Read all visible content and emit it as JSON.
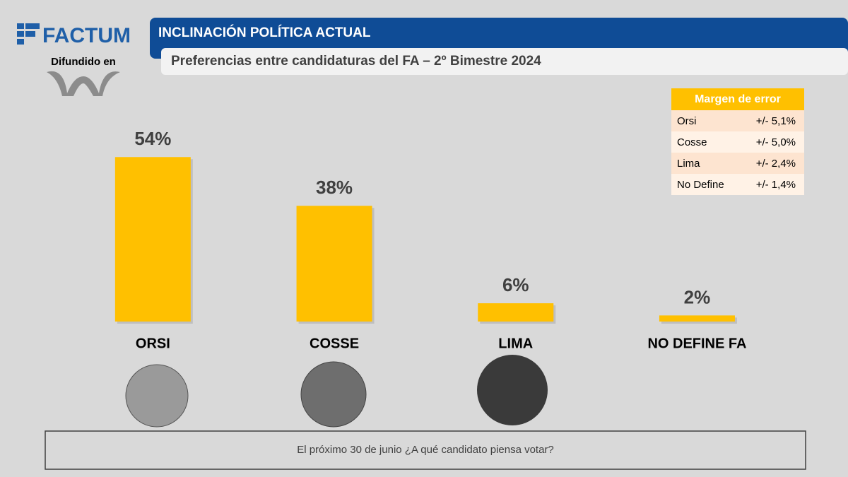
{
  "header": {
    "logo": "FACTUM",
    "distributed": "Difundido en",
    "title": "INCLINACIÓN POLÍTICA ACTUAL",
    "subtitle": "Preferencias entre candidaturas del FA – 2º Bimestre 2024"
  },
  "chart_data": {
    "type": "bar",
    "categories": [
      "ORSI",
      "COSSE",
      "LIMA",
      "NO DEFINE FA"
    ],
    "values": [
      54,
      38,
      6,
      2
    ],
    "value_labels": [
      "54%",
      "38%",
      "6%",
      "2%"
    ],
    "color": "#ffc000"
  },
  "margin_table": {
    "title": "Margen de error",
    "rows": [
      [
        "Orsi",
        "+/- 5,1%"
      ],
      [
        "Cosse",
        "+/- 5,0%"
      ],
      [
        "Lima",
        "+/- 2,4%"
      ],
      [
        "No Define",
        "+/- 1,4%"
      ]
    ]
  },
  "question": "El próximo 30 de junio ¿A qué candidato piensa votar?"
}
